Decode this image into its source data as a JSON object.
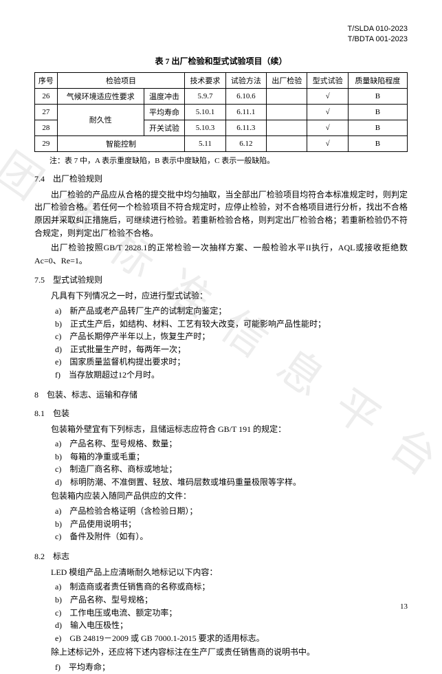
{
  "watermark": "团 体 标 准 信 息 平 台",
  "docid": {
    "line1": "T/SLDA 010-2023",
    "line2": "T/BDTA 001-2023"
  },
  "table": {
    "caption": "表 7 出厂检验和型式试验项目（续）",
    "headers": [
      "序号",
      "检验项目",
      "技术要求",
      "试验方法",
      "出厂检验",
      "型式试验",
      "质量缺陷程度"
    ],
    "rows": [
      [
        "26",
        "气候环境适应性要求",
        "温度冲击",
        "5.9.7",
        "6.10.6",
        "",
        "√",
        "B"
      ],
      [
        "27",
        "耐久性",
        "平均寿命",
        "5.10.1",
        "6.11.1",
        "",
        "√",
        "B"
      ],
      [
        "28",
        "",
        "开关试验",
        "5.10.3",
        "6.11.3",
        "",
        "√",
        "B"
      ],
      [
        "29",
        "智能控制",
        "",
        "5.11",
        "6.12",
        "",
        "√",
        "B"
      ]
    ],
    "note": "注：表 7 中，A 表示重度缺陷，B 表示中度缺陷，C 表示一般缺陷。"
  },
  "sections": {
    "s74": {
      "title": "7.4　出厂检验规则",
      "p1": "出厂检验的产品应从合格的提交批中均匀抽取，当全部出厂检验项目均符合本标准规定时，则判定出厂检验合格。若任何一个检验项目不符合规定时，应停止检验，对不合格项目进行分析，找出不合格原因并采取纠正措施后，可继续进行检验。若重新检验合格，则判定出厂检验合格；若重新检验仍不符合规定，则判定出厂检验不合格。",
      "p2": "出厂检验按照GB/T 2828.1的正常检验一次抽样方案、一般检验水平II执行，AQL或接收拒绝数Ac=0、Re=1。"
    },
    "s75": {
      "title": "7.5　型式试验规则",
      "intro": "凡具有下列情况之一时，应进行型式试验：",
      "items": [
        "a)　新产品或老产品转厂生产的试制定向鉴定；",
        "b)　正式生产后，如结构、材料、工艺有较大改变，可能影响产品性能时；",
        "c)　产品长期停产半年以上，恢复生产时；",
        "d)　正式批量生产时，每两年一次；",
        "e)　国家质量监督机构提出要求时；",
        "f)　当存放期超过12个月时。"
      ]
    },
    "s8": {
      "title": "8　包装、标志、运输和存储"
    },
    "s81": {
      "title": "8.1　包装",
      "intro1": "包装箱外壁宜有下列标志，且储运标志应符合 GB/T 191 的规定：",
      "listA": [
        "a)　产品名称、型号规格、数量；",
        "b)　每箱的净重或毛重；",
        "c)　制造厂商名称、商标或地址；",
        "d)　标明防潮、不准倒置、轻放、堆码层数或堆码重量极限等字样。"
      ],
      "intro2": "包装箱内应装入随同产品供应的文件：",
      "listB": [
        "a)　产品检验合格证明（含检验日期）；",
        "b)　产品使用说明书；",
        "c)　备件及附件（如有）。"
      ]
    },
    "s82": {
      "title": "8.2　标志",
      "intro": "LED 模组产品上应清晰耐久地标记以下内容：",
      "items": [
        "a)　制造商或者责任销售商的名称或商标；",
        "b)　产品名称、型号规格；",
        "c)　工作电压或电流、额定功率；",
        "d)　输入电压极性；",
        "e)　GB 24819－2009 或 GB 7000.1-2015 要求的适用标志。"
      ],
      "extra": "除上述标记外，还应将下述内容标注在生产厂或责任销售商的说明书中。",
      "items2": [
        "f)　平均寿命；"
      ]
    }
  },
  "pagenum": "13"
}
